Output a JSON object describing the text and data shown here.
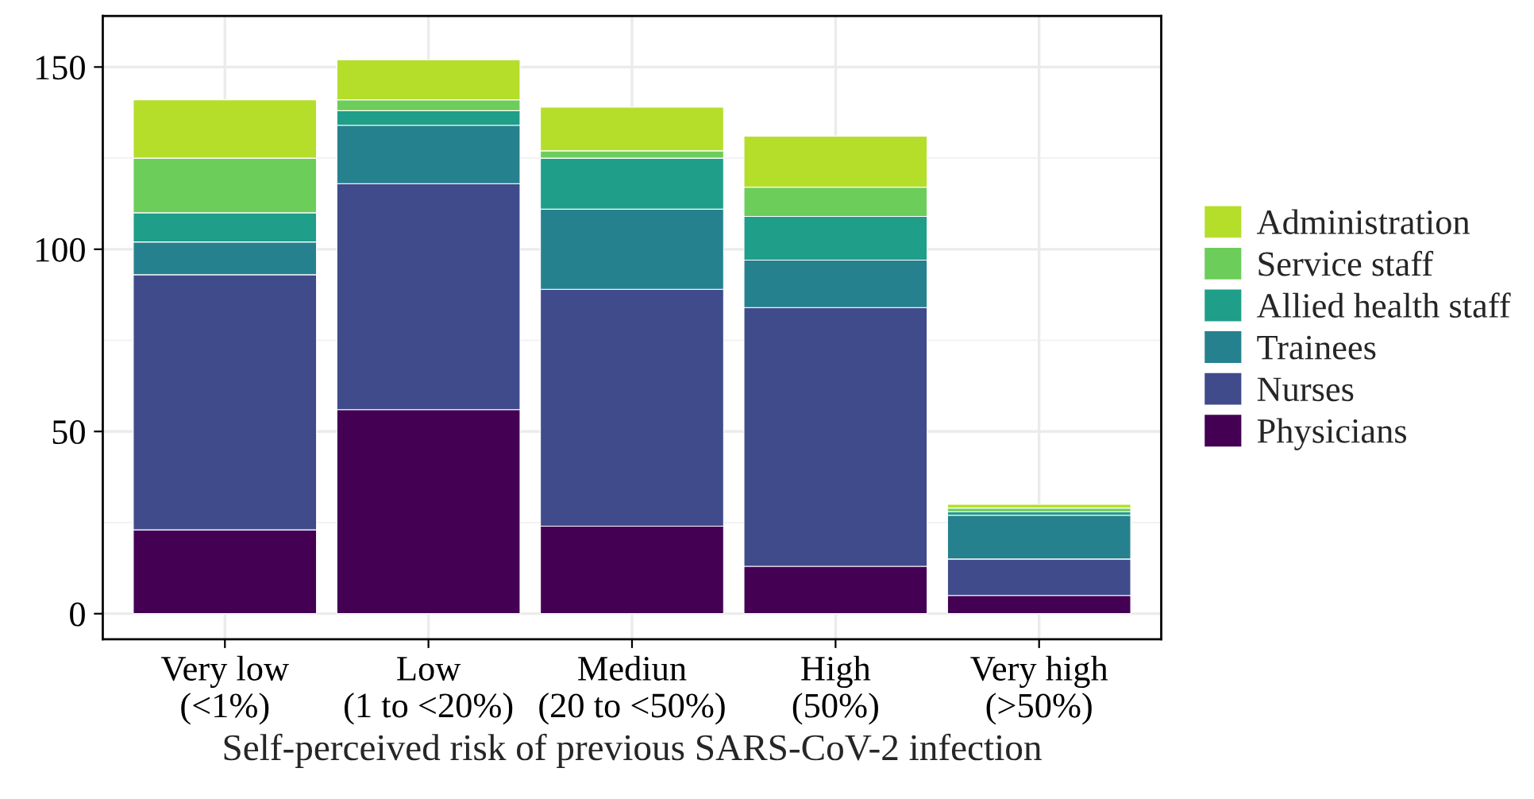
{
  "chart_data": {
    "type": "bar",
    "stacked": true,
    "xlabel": "Self-perceived risk of previous SARS-CoV-2 infection",
    "categories": [
      "Very low\n(<1%)",
      "Low\n(1 to <20%)",
      "Mediun\n(20 to <50%)",
      "High\n(50%)",
      "Very high\n(>50%)"
    ],
    "series": [
      {
        "name": "Physicians",
        "color": "#440154",
        "values": [
          23,
          56,
          24,
          13,
          5
        ]
      },
      {
        "name": "Nurses",
        "color": "#3f4b8a",
        "values": [
          70,
          62,
          65,
          71,
          10
        ]
      },
      {
        "name": "Trainees",
        "color": "#26818e",
        "values": [
          9,
          16,
          22,
          13,
          12
        ]
      },
      {
        "name": "Allied health staff",
        "color": "#1f9e89",
        "values": [
          8,
          4,
          14,
          12,
          1
        ]
      },
      {
        "name": "Service staff",
        "color": "#6ccd5a",
        "values": [
          15,
          3,
          2,
          8,
          1
        ]
      },
      {
        "name": "Administration",
        "color": "#b5de2b",
        "values": [
          16,
          11,
          12,
          14,
          1
        ]
      }
    ],
    "ylim": [
      -7,
      164
    ],
    "yticks": [
      0,
      50,
      100,
      150
    ],
    "grid": true,
    "legend": "right"
  }
}
